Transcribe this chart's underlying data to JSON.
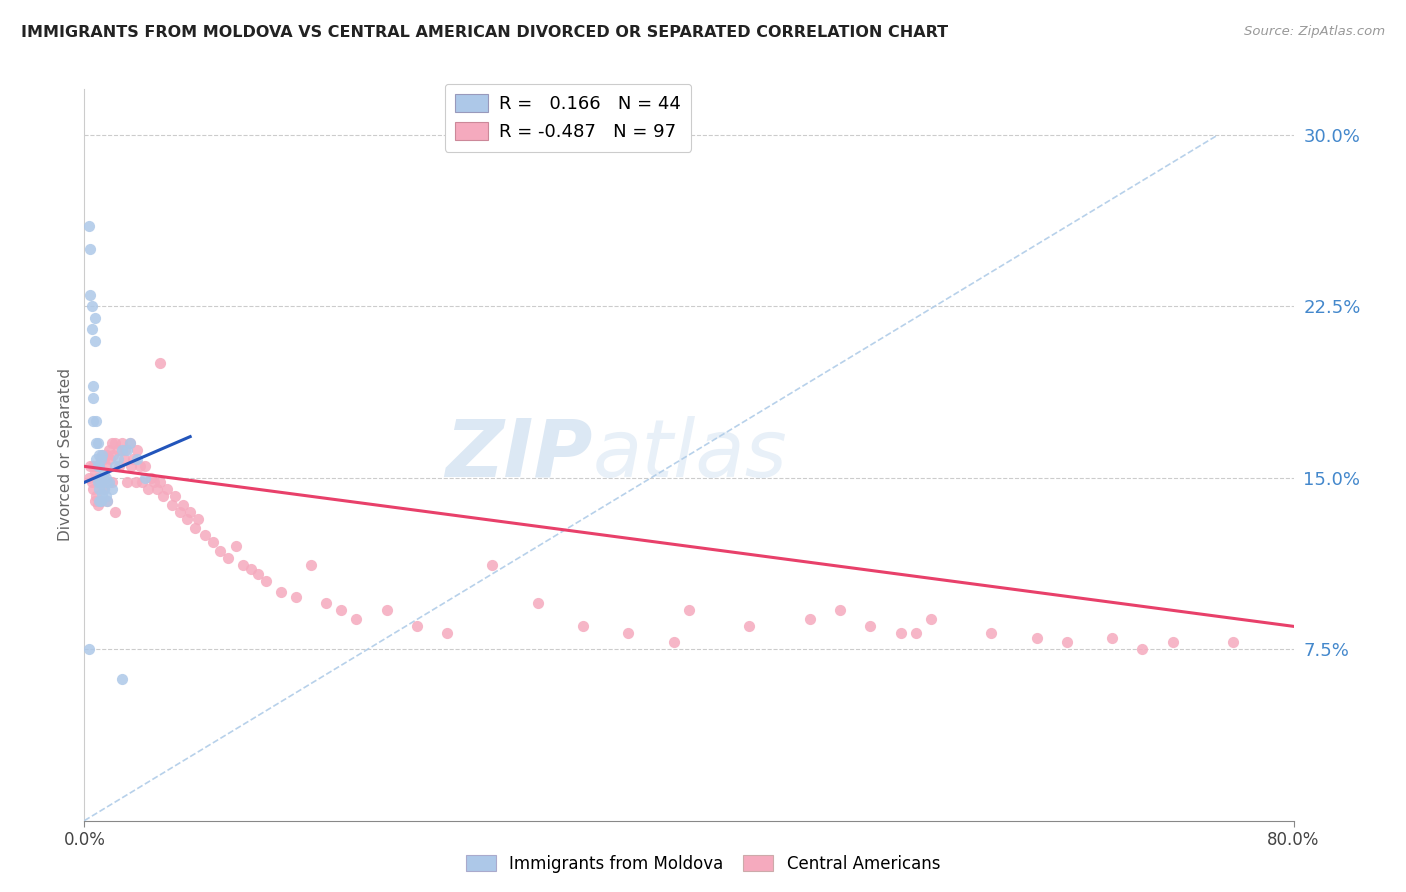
{
  "title": "IMMIGRANTS FROM MOLDOVA VS CENTRAL AMERICAN DIVORCED OR SEPARATED CORRELATION CHART",
  "source": "Source: ZipAtlas.com",
  "ylabel": "Divorced or Separated",
  "yticks": [
    0.075,
    0.15,
    0.225,
    0.3
  ],
  "ytick_labels": [
    "7.5%",
    "15.0%",
    "22.5%",
    "30.0%"
  ],
  "xmin": 0.0,
  "xmax": 0.8,
  "ymin": 0.0,
  "ymax": 0.32,
  "r_moldova": 0.166,
  "n_moldova": 44,
  "r_central": -0.487,
  "n_central": 97,
  "moldova_color": "#adc8e8",
  "moldova_line_color": "#2255bb",
  "central_color": "#f5aabe",
  "central_line_color": "#e8406a",
  "dashed_line_color": "#b0cce8",
  "background_color": "#ffffff",
  "watermark_zip": "ZIP",
  "watermark_atlas": "atlas",
  "moldova_scatter_x": [
    0.003,
    0.004,
    0.004,
    0.005,
    0.005,
    0.006,
    0.006,
    0.006,
    0.007,
    0.007,
    0.008,
    0.008,
    0.008,
    0.009,
    0.009,
    0.009,
    0.01,
    0.01,
    0.01,
    0.01,
    0.01,
    0.011,
    0.011,
    0.011,
    0.012,
    0.012,
    0.012,
    0.013,
    0.013,
    0.014,
    0.014,
    0.015,
    0.015,
    0.016,
    0.018,
    0.02,
    0.022,
    0.025,
    0.028,
    0.03,
    0.035,
    0.04,
    0.003,
    0.025
  ],
  "moldova_scatter_y": [
    0.26,
    0.25,
    0.23,
    0.225,
    0.215,
    0.19,
    0.185,
    0.175,
    0.22,
    0.21,
    0.175,
    0.165,
    0.158,
    0.165,
    0.155,
    0.148,
    0.16,
    0.155,
    0.15,
    0.145,
    0.14,
    0.158,
    0.148,
    0.14,
    0.16,
    0.15,
    0.143,
    0.152,
    0.145,
    0.15,
    0.142,
    0.148,
    0.14,
    0.148,
    0.145,
    0.155,
    0.158,
    0.162,
    0.162,
    0.165,
    0.158,
    0.15,
    0.075,
    0.062
  ],
  "central_scatter_x": [
    0.003,
    0.004,
    0.005,
    0.006,
    0.006,
    0.007,
    0.007,
    0.008,
    0.008,
    0.009,
    0.009,
    0.01,
    0.01,
    0.011,
    0.011,
    0.012,
    0.012,
    0.013,
    0.013,
    0.014,
    0.015,
    0.015,
    0.016,
    0.017,
    0.018,
    0.018,
    0.019,
    0.02,
    0.02,
    0.022,
    0.023,
    0.025,
    0.026,
    0.027,
    0.028,
    0.03,
    0.031,
    0.032,
    0.034,
    0.035,
    0.037,
    0.038,
    0.04,
    0.042,
    0.044,
    0.046,
    0.048,
    0.05,
    0.052,
    0.055,
    0.058,
    0.06,
    0.063,
    0.065,
    0.068,
    0.07,
    0.073,
    0.075,
    0.08,
    0.085,
    0.09,
    0.095,
    0.1,
    0.105,
    0.11,
    0.115,
    0.12,
    0.13,
    0.14,
    0.15,
    0.16,
    0.17,
    0.18,
    0.2,
    0.22,
    0.24,
    0.27,
    0.3,
    0.33,
    0.36,
    0.4,
    0.44,
    0.48,
    0.5,
    0.52,
    0.54,
    0.56,
    0.6,
    0.63,
    0.65,
    0.68,
    0.7,
    0.72,
    0.05,
    0.39,
    0.55,
    0.76
  ],
  "central_scatter_y": [
    0.15,
    0.155,
    0.148,
    0.155,
    0.145,
    0.152,
    0.14,
    0.155,
    0.142,
    0.15,
    0.138,
    0.155,
    0.148,
    0.158,
    0.14,
    0.16,
    0.148,
    0.158,
    0.145,
    0.155,
    0.16,
    0.14,
    0.162,
    0.158,
    0.165,
    0.148,
    0.16,
    0.165,
    0.135,
    0.162,
    0.155,
    0.165,
    0.158,
    0.162,
    0.148,
    0.165,
    0.155,
    0.158,
    0.148,
    0.162,
    0.155,
    0.148,
    0.155,
    0.145,
    0.15,
    0.148,
    0.145,
    0.148,
    0.142,
    0.145,
    0.138,
    0.142,
    0.135,
    0.138,
    0.132,
    0.135,
    0.128,
    0.132,
    0.125,
    0.122,
    0.118,
    0.115,
    0.12,
    0.112,
    0.11,
    0.108,
    0.105,
    0.1,
    0.098,
    0.112,
    0.095,
    0.092,
    0.088,
    0.092,
    0.085,
    0.082,
    0.112,
    0.095,
    0.085,
    0.082,
    0.092,
    0.085,
    0.088,
    0.092,
    0.085,
    0.082,
    0.088,
    0.082,
    0.08,
    0.078,
    0.08,
    0.075,
    0.078,
    0.2,
    0.078,
    0.082,
    0.078
  ],
  "moldova_line_x": [
    0.0,
    0.07
  ],
  "central_line_x": [
    0.0,
    0.8
  ],
  "moldova_line_y_start": 0.148,
  "moldova_line_y_end": 0.168,
  "central_line_y_start": 0.155,
  "central_line_y_end": 0.085
}
